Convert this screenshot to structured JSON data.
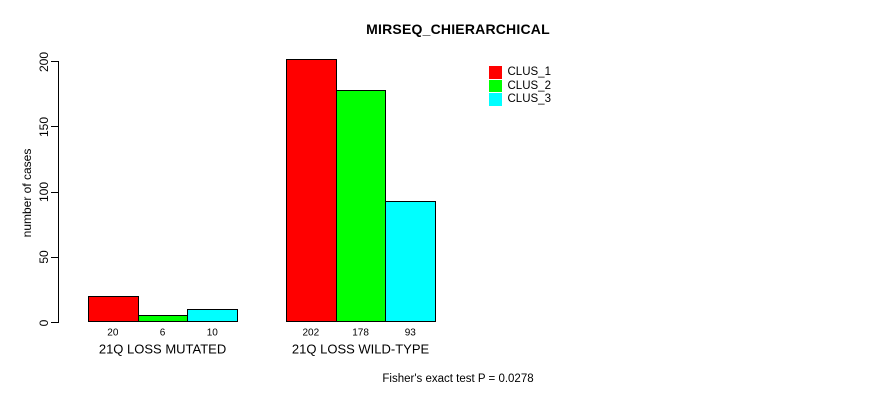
{
  "title": "MIRSEQ_CHIERARCHICAL",
  "footer": "Fisher's exact test P = 0.0278",
  "chart_data": {
    "type": "bar",
    "title": "MIRSEQ_CHIERARCHICAL",
    "xlabel": "",
    "ylabel": "number of cases",
    "ylim": [
      0,
      200
    ],
    "yticks": [
      0,
      50,
      100,
      150,
      200
    ],
    "grid": false,
    "background": "#ffffff",
    "bar_border_color": "#000000",
    "categories": [
      "21Q LOSS MUTATED",
      "21Q LOSS WILD-TYPE"
    ],
    "series": [
      {
        "name": "CLUS_1",
        "color": "#ff0000",
        "values": [
          20,
          202
        ]
      },
      {
        "name": "CLUS_2",
        "color": "#00ff00",
        "values": [
          6,
          178
        ]
      },
      {
        "name": "CLUS_3",
        "color": "#00ffff",
        "values": [
          10,
          93
        ]
      }
    ],
    "bar_value_labels": [
      [
        "20",
        "6",
        "10"
      ],
      [
        "202",
        "178",
        "93"
      ]
    ],
    "legend_position": "top-right-inside",
    "annotation": "Fisher's exact test P = 0.0278"
  }
}
